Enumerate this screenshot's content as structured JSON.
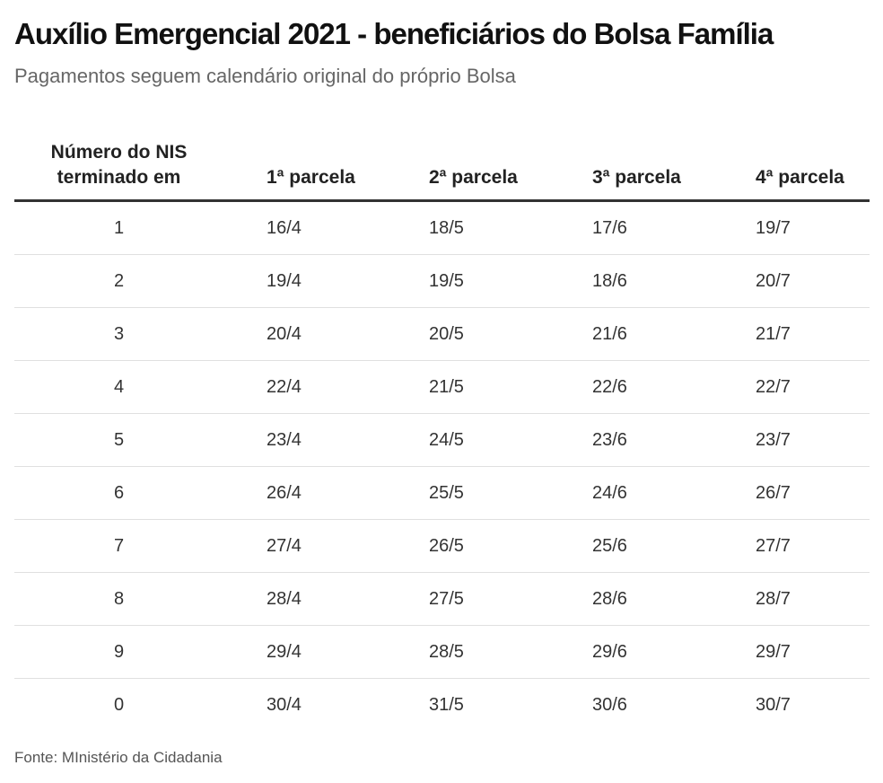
{
  "title": "Auxílio Emergencial 2021 - beneficiários do Bolsa Família",
  "subtitle": "Pagamentos seguem calendário original do próprio Bolsa",
  "table": {
    "headers": {
      "nis_line1": "Número do NIS",
      "nis_line2": "terminado em",
      "p1": "1ª parcela",
      "p2": "2ª parcela",
      "p3": "3ª parcela",
      "p4": "4ª parcela"
    },
    "rows": [
      [
        "1",
        "16/4",
        "18/5",
        "17/6",
        "19/7"
      ],
      [
        "2",
        "19/4",
        "19/5",
        "18/6",
        "20/7"
      ],
      [
        "3",
        "20/4",
        "20/5",
        "21/6",
        "21/7"
      ],
      [
        "4",
        "22/4",
        "21/5",
        "22/6",
        "22/7"
      ],
      [
        "5",
        "23/4",
        "24/5",
        "23/6",
        "23/7"
      ],
      [
        "6",
        "26/4",
        "25/5",
        "24/6",
        "26/7"
      ],
      [
        "7",
        "27/4",
        "26/5",
        "25/6",
        "27/7"
      ],
      [
        "8",
        "28/4",
        "27/5",
        "28/6",
        "28/7"
      ],
      [
        "9",
        "29/4",
        "28/5",
        "29/6",
        "29/7"
      ],
      [
        "0",
        "30/4",
        "31/5",
        "30/6",
        "30/7"
      ]
    ]
  },
  "source": "Fonte: MInistério da Cidadania"
}
